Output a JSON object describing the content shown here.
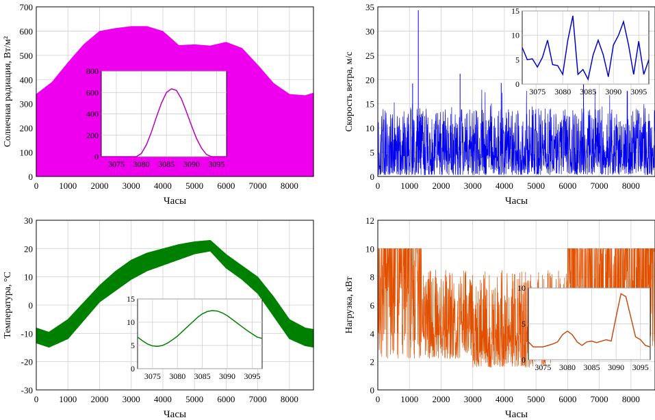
{
  "chart_data": [
    {
      "type": "area",
      "xlabel": "Часы",
      "ylabel": "Солнечная радиация, Вт/м²",
      "xlim": [
        0,
        8760
      ],
      "ylim": [
        0,
        700
      ],
      "xticks": [
        0,
        1000,
        2000,
        3000,
        4000,
        5000,
        6000,
        7000,
        8000
      ],
      "yticks": [
        0,
        100,
        200,
        300,
        400,
        500,
        600,
        700
      ],
      "grid": true,
      "color": "#ee00ee",
      "series": [
        {
          "kind": "envelope",
          "x": [
            0,
            500,
            1000,
            1500,
            2000,
            2500,
            3000,
            3500,
            4000,
            4500,
            5000,
            5500,
            6000,
            6500,
            7000,
            7500,
            8000,
            8500,
            8760
          ],
          "upper": [
            340,
            390,
            470,
            545,
            600,
            612,
            620,
            620,
            600,
            542,
            545,
            540,
            555,
            530,
            460,
            385,
            340,
            335,
            345
          ],
          "lower": [
            0,
            0,
            0,
            0,
            0,
            0,
            0,
            0,
            0,
            0,
            0,
            0,
            0,
            0,
            0,
            0,
            0,
            0,
            0
          ]
        }
      ],
      "inset": {
        "type": "line",
        "xlim": [
          3072,
          3097
        ],
        "ylim": [
          0,
          800
        ],
        "xticks": [
          3075,
          3080,
          3085,
          3090,
          3095
        ],
        "yticks": [
          0,
          200,
          400,
          600,
          800
        ],
        "color": "#b800b8",
        "x": [
          3072,
          3079,
          3080,
          3081,
          3082,
          3083,
          3084,
          3085,
          3086,
          3087,
          3088,
          3089,
          3090,
          3091,
          3092,
          3093,
          3094,
          3097
        ],
        "y": [
          0,
          0,
          30,
          110,
          230,
          370,
          500,
          600,
          635,
          620,
          540,
          420,
          290,
          170,
          80,
          20,
          0,
          0
        ]
      }
    },
    {
      "type": "line",
      "xlabel": "Часы",
      "ylabel": "Скорость ветра, м/с",
      "xlim": [
        0,
        8760
      ],
      "ylim": [
        0,
        35
      ],
      "xticks": [
        0,
        1000,
        2000,
        3000,
        4000,
        5000,
        6000,
        7000,
        8000
      ],
      "yticks": [
        0,
        5,
        10,
        15,
        20,
        25,
        30,
        35
      ],
      "grid": true,
      "color": "#0000ee",
      "series": [
        {
          "kind": "noise",
          "mean": 5.5,
          "range": [
            0.3,
            14
          ],
          "spikes": [
            [
              1280,
              34.3
            ],
            [
              2600,
              21.2
            ],
            [
              1100,
              19.2
            ],
            [
              3900,
              19.3
            ],
            [
              6500,
              19.1
            ]
          ]
        }
      ],
      "inset": {
        "type": "line",
        "xlim": [
          3072,
          3097
        ],
        "ylim": [
          0,
          15
        ],
        "xticks": [
          3075,
          3080,
          3085,
          3090,
          3095
        ],
        "yticks": [
          0,
          5,
          10,
          15
        ],
        "color": "#0000cc",
        "x": [
          3072,
          3073,
          3074,
          3075,
          3076,
          3077,
          3078,
          3079,
          3080,
          3081,
          3082,
          3083,
          3084,
          3085,
          3086,
          3087,
          3088,
          3089,
          3090,
          3091,
          3092,
          3093,
          3094,
          3095,
          3096,
          3097
        ],
        "y": [
          7.5,
          5,
          5.2,
          3.5,
          5.5,
          9,
          4,
          3.8,
          2,
          9,
          14,
          2,
          3,
          1,
          6,
          9,
          6,
          1.5,
          8,
          10,
          12.8,
          8,
          2,
          8.8,
          2,
          5
        ]
      }
    },
    {
      "type": "area",
      "xlabel": "Часы",
      "ylabel": "Температура, °С",
      "xlim": [
        0,
        8760
      ],
      "ylim": [
        -30,
        30
      ],
      "xticks": [
        0,
        1000,
        2000,
        3000,
        4000,
        5000,
        6000,
        7000,
        8000
      ],
      "yticks": [
        -30,
        -20,
        -10,
        0,
        10,
        20,
        30
      ],
      "grid": true,
      "color": "#008000",
      "series": [
        {
          "kind": "envelope",
          "x": [
            0,
            400,
            1000,
            1500,
            2000,
            2500,
            3000,
            3500,
            4000,
            4500,
            5000,
            5500,
            6000,
            6500,
            7000,
            7500,
            8000,
            8500,
            8760
          ],
          "upper": [
            -8,
            -9.5,
            -5,
            1,
            7,
            12,
            16,
            18.5,
            20,
            21.5,
            22.5,
            23,
            18,
            14,
            10,
            3,
            -5,
            -8,
            -8.5
          ],
          "lower": [
            -13.5,
            -15,
            -12,
            -5.5,
            1,
            5,
            9,
            12,
            14,
            16,
            18,
            19,
            13,
            9,
            4,
            -4,
            -12,
            -14.5,
            -15
          ]
        }
      ],
      "inset": {
        "type": "line",
        "xlim": [
          3072,
          3097
        ],
        "ylim": [
          0,
          15
        ],
        "xticks": [
          3075,
          3080,
          3085,
          3090,
          3095
        ],
        "yticks": [
          0,
          5,
          10,
          15
        ],
        "color": "#008000",
        "x": [
          3072,
          3073,
          3074,
          3075,
          3076,
          3077,
          3078,
          3079,
          3080,
          3081,
          3082,
          3083,
          3084,
          3085,
          3086,
          3087,
          3088,
          3089,
          3090,
          3091,
          3092,
          3093,
          3094,
          3095,
          3096,
          3097
        ],
        "y": [
          6.8,
          6,
          5.3,
          4.9,
          4.8,
          5,
          5.5,
          6.2,
          7,
          8,
          9,
          10,
          11,
          11.8,
          12.3,
          12.5,
          12.4,
          12,
          11.4,
          10.6,
          9.8,
          9,
          8.2,
          7.5,
          6.8,
          6.5
        ]
      }
    },
    {
      "type": "line",
      "xlabel": "Часы",
      "ylabel": "Нагрузка, кВт",
      "xlim": [
        0,
        8760
      ],
      "ylim": [
        0,
        12
      ],
      "xticks": [
        0,
        1000,
        2000,
        3000,
        4000,
        5000,
        6000,
        7000,
        8000
      ],
      "yticks": [
        0,
        2,
        4,
        6,
        8,
        10,
        12
      ],
      "grid": true,
      "color": "#e05000",
      "series": [
        {
          "kind": "noise",
          "mean": 4,
          "range": [
            1.5,
            10
          ]
        }
      ],
      "inset": {
        "type": "line",
        "xlim": [
          3072,
          3097
        ],
        "ylim": [
          0,
          10
        ],
        "xticks": [
          3075,
          3080,
          3085,
          3090,
          3095
        ],
        "yticks": [
          0,
          5,
          10
        ],
        "color": "#c84a10",
        "x": [
          3072,
          3073,
          3074,
          3075,
          3076,
          3077,
          3078,
          3079,
          3080,
          3081,
          3082,
          3083,
          3084,
          3085,
          3086,
          3087,
          3088,
          3089,
          3090,
          3091,
          3092,
          3093,
          3094,
          3095,
          3096,
          3097
        ],
        "y": [
          2.5,
          1.8,
          1.8,
          1.8,
          2,
          2.2,
          2.5,
          3.5,
          4,
          3.5,
          2.5,
          2,
          2.5,
          2.6,
          2.4,
          2.6,
          2.8,
          2.6,
          6,
          9.2,
          8.8,
          6,
          3.2,
          2.8,
          2,
          1.8
        ]
      }
    }
  ]
}
